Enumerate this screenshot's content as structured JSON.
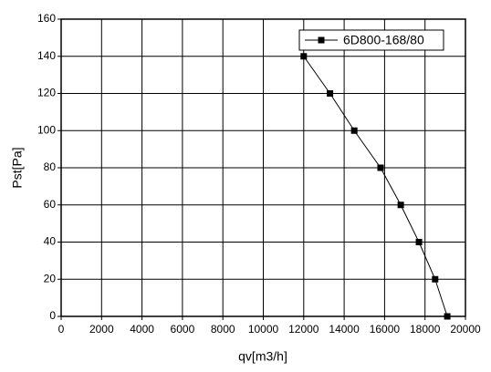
{
  "chart_data": {
    "type": "line",
    "x_label": "qv[m3/h]",
    "y_label": "Pst[Pa]",
    "x": [
      12000,
      13300,
      14500,
      15800,
      16800,
      17700,
      18500,
      19100
    ],
    "series": [
      {
        "name": "6D800-168/80",
        "color": "#000000",
        "values": [
          140,
          120,
          100,
          80,
          60,
          40,
          20,
          0
        ]
      }
    ],
    "xlim": [
      0,
      20000
    ],
    "xticks": [
      0,
      2000,
      4000,
      6000,
      8000,
      10000,
      12000,
      14000,
      16000,
      18000,
      20000
    ],
    "ylim": [
      0,
      160
    ],
    "yticks": [
      0,
      20,
      40,
      60,
      80,
      100,
      120,
      140,
      160
    ],
    "grid": true,
    "legend": "top-right"
  }
}
